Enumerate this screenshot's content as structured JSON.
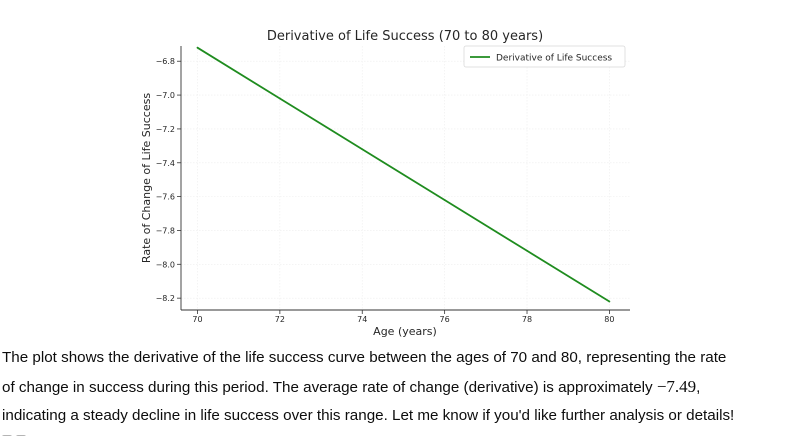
{
  "chart_data": {
    "type": "line",
    "title": "Derivative of Life Success (70 to 80 years)",
    "xlabel": "Age (years)",
    "ylabel": "Rate of Change of Life Success",
    "xlim": [
      69.6,
      80.5
    ],
    "ylim": [
      -8.27,
      -6.71
    ],
    "xticks": [
      70,
      72,
      74,
      76,
      78,
      80
    ],
    "yticks": [
      -6.8,
      -7.0,
      -7.2,
      -7.4,
      -7.6,
      -7.8,
      -8.0,
      -8.2
    ],
    "xtick_labels": [
      "70",
      "72",
      "74",
      "76",
      "78",
      "80"
    ],
    "ytick_labels": [
      "−6.8",
      "−7.0",
      "−7.2",
      "−7.4",
      "−7.6",
      "−7.8",
      "−8.0",
      "−8.2"
    ],
    "grid": true,
    "legend_position": "top-right",
    "series": [
      {
        "name": "Derivative of Life Success",
        "color": "#1f8c1f",
        "x": [
          70,
          72,
          74,
          76,
          78,
          80
        ],
        "y": [
          -6.72,
          -7.02,
          -7.32,
          -7.62,
          -7.92,
          -8.22
        ]
      }
    ]
  },
  "message": {
    "line1": "The plot shows the derivative of the life success curve between the ages of 70 and 80, representing the rate",
    "line2_before": "of change in success during this period. The average rate of change (derivative) is approximately ",
    "line2_value": "−7.49",
    "line2_after": ",",
    "line3": "indicating a steady decline in life success over this range. Let me know if you'd like further analysis or details!"
  }
}
